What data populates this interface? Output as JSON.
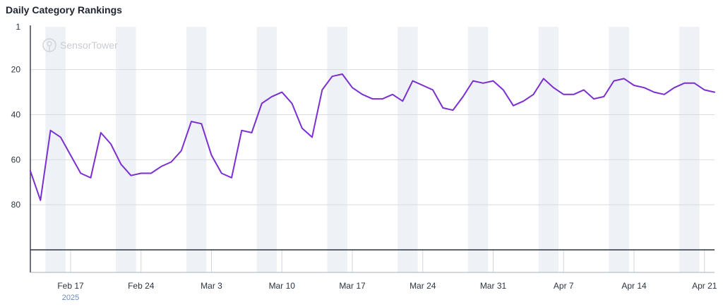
{
  "chart_title": "Daily Category Rankings",
  "watermark": "SensorTower",
  "chart_data": {
    "type": "line",
    "title": "Daily Category Rankings",
    "y_axis": {
      "inverted": true,
      "range": [
        1,
        100
      ],
      "ticks": [
        "1",
        "20",
        "40",
        "60",
        "80"
      ]
    },
    "x_axis": {
      "start": "Feb 13, 2025",
      "end": "Apr 22, 2025",
      "ticks": [
        "Feb 17",
        "Feb 24",
        "Mar 3",
        "Mar 10",
        "Mar 17",
        "Mar 24",
        "Mar 31",
        "Apr 7",
        "Apr 14",
        "Apr 21"
      ],
      "year_label": "2025"
    },
    "weekend_shading": true,
    "grid": true,
    "series": [
      {
        "color": "#7b2fd1",
        "x": [
          "Feb 13",
          "Feb 14",
          "Feb 15",
          "Feb 16",
          "Feb 17",
          "Feb 18",
          "Feb 19",
          "Feb 20",
          "Feb 21",
          "Feb 22",
          "Feb 23",
          "Feb 24",
          "Feb 25",
          "Feb 26",
          "Feb 27",
          "Feb 28",
          "Mar 1",
          "Mar 2",
          "Mar 3",
          "Mar 4",
          "Mar 5",
          "Mar 6",
          "Mar 7",
          "Mar 8",
          "Mar 9",
          "Mar 10",
          "Mar 11",
          "Mar 12",
          "Mar 13",
          "Mar 14",
          "Mar 15",
          "Mar 16",
          "Mar 17",
          "Mar 18",
          "Mar 19",
          "Mar 20",
          "Mar 21",
          "Mar 22",
          "Mar 23",
          "Mar 24",
          "Mar 25",
          "Mar 26",
          "Mar 27",
          "Mar 28",
          "Mar 29",
          "Mar 30",
          "Mar 31",
          "Apr 1",
          "Apr 2",
          "Apr 3",
          "Apr 4",
          "Apr 5",
          "Apr 6",
          "Apr 7",
          "Apr 8",
          "Apr 9",
          "Apr 10",
          "Apr 11",
          "Apr 12",
          "Apr 13",
          "Apr 14",
          "Apr 15",
          "Apr 16",
          "Apr 17",
          "Apr 18",
          "Apr 19",
          "Apr 20",
          "Apr 21",
          "Apr 22"
        ],
        "values": [
          65,
          78,
          47,
          50,
          58,
          66,
          68,
          48,
          53,
          62,
          67,
          66,
          66,
          63,
          61,
          56,
          43,
          44,
          58,
          66,
          68,
          47,
          48,
          35,
          32,
          30,
          35,
          46,
          50,
          29,
          23,
          22,
          28,
          31,
          33,
          33,
          31,
          34,
          25,
          27,
          29,
          37,
          38,
          32,
          25,
          26,
          25,
          29,
          36,
          34,
          31,
          24,
          28,
          31,
          31,
          29,
          33,
          32,
          25,
          24,
          27,
          28,
          30,
          31,
          28,
          26,
          26,
          29,
          30
        ]
      }
    ]
  }
}
